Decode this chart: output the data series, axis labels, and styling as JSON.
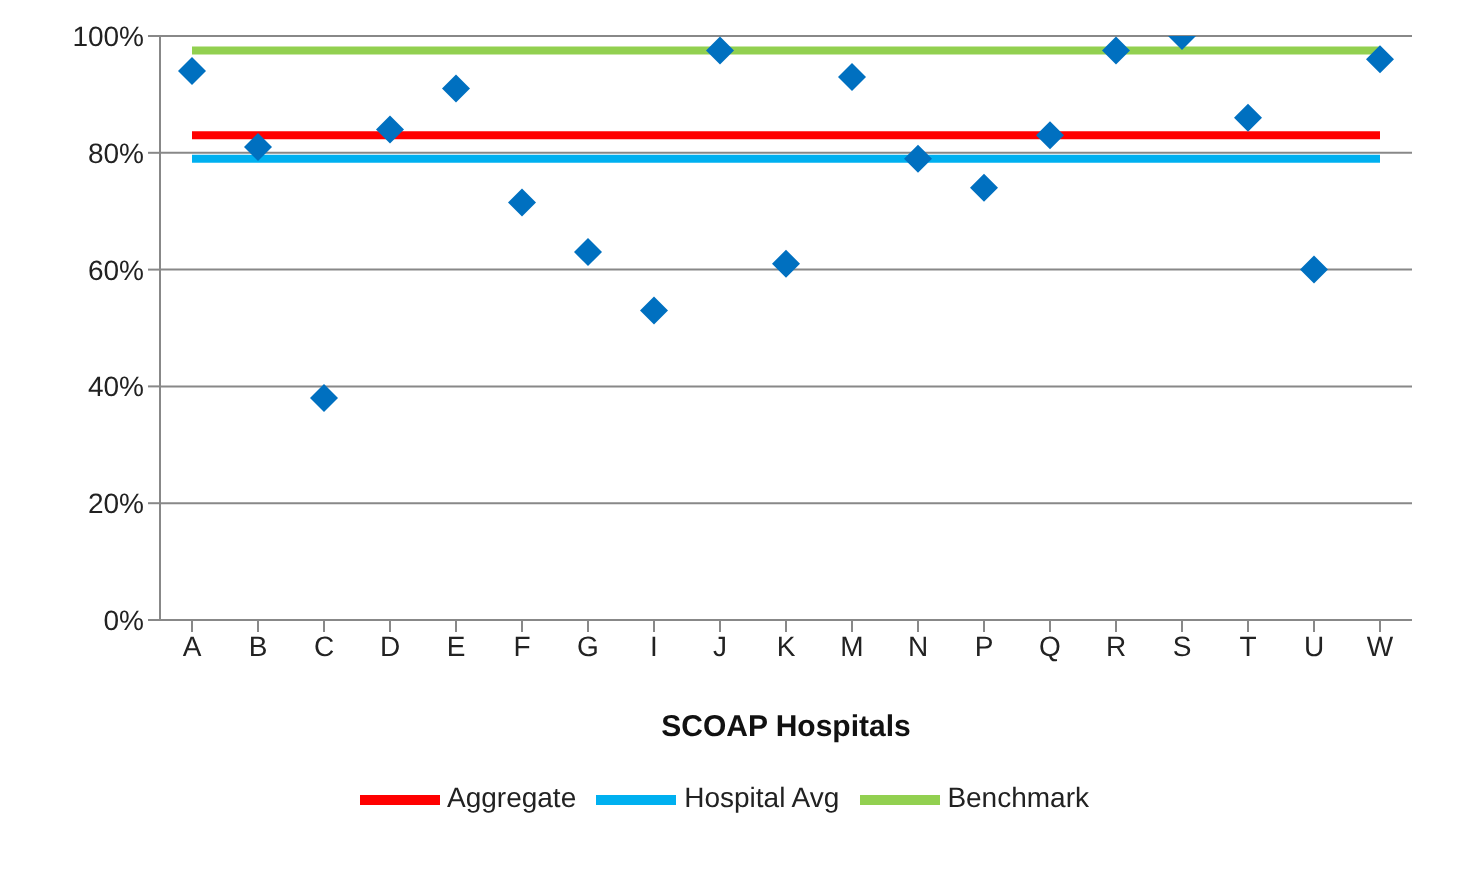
{
  "chart_data": {
    "type": "scatter",
    "xlabel": "SCOAP Hospitals",
    "categories": [
      "A",
      "B",
      "C",
      "D",
      "E",
      "F",
      "G",
      "I",
      "J",
      "K",
      "M",
      "N",
      "P",
      "Q",
      "R",
      "S",
      "T",
      "U",
      "W"
    ],
    "series": [
      {
        "color": "#0070c0",
        "marker": "diamond",
        "values": [
          94,
          81,
          38,
          84,
          91,
          71.5,
          63,
          53,
          97.5,
          61,
          93,
          79,
          74,
          83,
          97.5,
          100,
          86,
          60,
          96
        ]
      },
      {
        "type": "line",
        "name": "Aggregate",
        "color": "#ff0000",
        "marker": "none",
        "values": [
          83,
          83,
          83,
          83,
          83,
          83,
          83,
          83,
          83,
          83,
          83,
          83,
          83,
          83,
          83,
          83,
          83,
          83,
          83
        ]
      },
      {
        "type": "line",
        "name": "Hospital Avg",
        "color": "#00b0f0",
        "marker": "none",
        "values": [
          79,
          79,
          79,
          79,
          79,
          79,
          79,
          79,
          79,
          79,
          79,
          79,
          79,
          79,
          79,
          79,
          79,
          79,
          79
        ]
      },
      {
        "type": "line",
        "name": "Benchmark",
        "color": "#92d050",
        "marker": "none",
        "values": [
          97.5,
          97.5,
          97.5,
          97.5,
          97.5,
          97.5,
          97.5,
          97.5,
          97.5,
          97.5,
          97.5,
          97.5,
          97.5,
          97.5,
          97.5,
          97.5,
          97.5,
          97.5,
          97.5
        ]
      }
    ],
    "ylim": [
      0,
      100
    ],
    "yticks": [
      {
        "value": 0,
        "label": "0%"
      },
      {
        "value": 20,
        "label": "20%"
      },
      {
        "value": 40,
        "label": "40%"
      },
      {
        "value": 60,
        "label": "60%"
      },
      {
        "value": 80,
        "label": "80%"
      },
      {
        "value": 100,
        "label": "100%"
      }
    ],
    "grid": "y",
    "legend": "bottom"
  }
}
